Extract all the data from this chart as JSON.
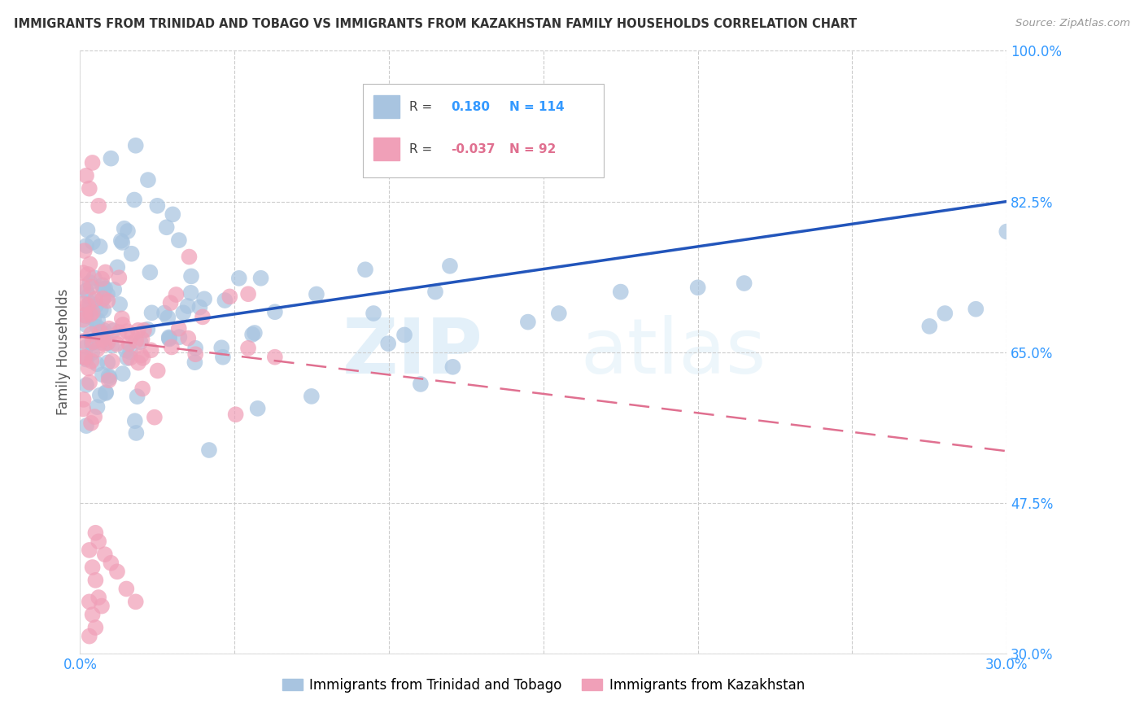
{
  "title": "IMMIGRANTS FROM TRINIDAD AND TOBAGO VS IMMIGRANTS FROM KAZAKHSTAN FAMILY HOUSEHOLDS CORRELATION CHART",
  "source": "Source: ZipAtlas.com",
  "ylabel": "Family Households",
  "xlim": [
    0.0,
    0.3
  ],
  "ylim": [
    0.3,
    1.0
  ],
  "x_ticks": [
    0.0,
    0.05,
    0.1,
    0.15,
    0.2,
    0.25,
    0.3
  ],
  "y_ticks": [
    0.3,
    0.475,
    0.65,
    0.825,
    1.0
  ],
  "y_tick_labels": [
    "30.0%",
    "47.5%",
    "65.0%",
    "82.5%",
    "100.0%"
  ],
  "grid_color": "#cccccc",
  "background_color": "#ffffff",
  "watermark_zip": "ZIP",
  "watermark_atlas": "atlas",
  "blue_R": 0.18,
  "blue_N": 114,
  "pink_R": -0.037,
  "pink_N": 92,
  "blue_color": "#a8c4e0",
  "pink_color": "#f0a0b8",
  "blue_line_color": "#2255bb",
  "pink_line_color": "#e07090",
  "legend_blue_label": "Immigrants from Trinidad and Tobago",
  "legend_pink_label": "Immigrants from Kazakhstan",
  "blue_trend_x": [
    0.0,
    0.3
  ],
  "blue_trend_y": [
    0.668,
    0.825
  ],
  "pink_trend_x": [
    0.0,
    0.3
  ],
  "pink_trend_y": [
    0.668,
    0.535
  ],
  "tick_color": "#3399ff",
  "title_color": "#333333",
  "source_color": "#999999",
  "ylabel_color": "#555555"
}
